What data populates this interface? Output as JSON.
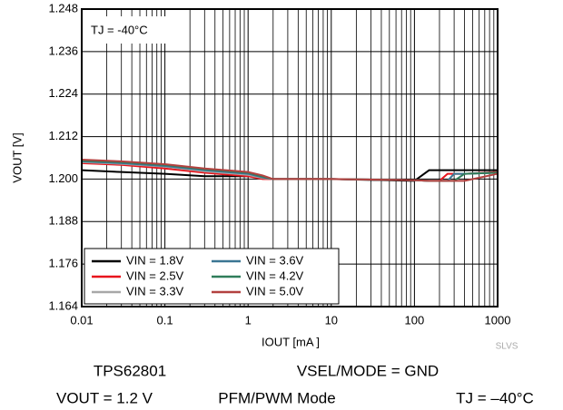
{
  "chart_data": {
    "type": "line",
    "xscale": "log",
    "ylabel": "VOUT [V]",
    "xlabel": "IOUT [mA ]",
    "annotation": "TJ = -40°C",
    "watermark": "SLVS",
    "footer": [
      "TPS62801",
      "VSEL/MODE = GND",
      "VOUT = 1.2 V",
      "PFM/PWM Mode",
      "TJ = –40°C"
    ],
    "x": [
      0.01,
      0.03,
      0.1,
      0.3,
      1,
      1.5,
      2,
      10,
      100,
      150,
      200,
      250,
      300,
      400,
      1000
    ],
    "series": [
      {
        "name": "VIN = 1.8V",
        "color": "#000000",
        "values": [
          1.2025,
          1.202,
          1.2015,
          1.2008,
          1.2008,
          1.2003,
          1.2,
          1.2,
          1.1995,
          1.2025,
          1.2025,
          1.2025,
          1.2025,
          1.2025,
          1.2025
        ]
      },
      {
        "name": "VIN = 2.5V",
        "color": "#e8141c",
        "values": [
          1.2045,
          1.204,
          1.203,
          1.2018,
          1.2008,
          1.2,
          1.2,
          1.2,
          1.1997,
          1.1995,
          1.1995,
          1.2015,
          1.2015,
          1.2015,
          1.202
        ]
      },
      {
        "name": "VIN = 3.3V",
        "color": "#a8a8a8",
        "values": [
          1.2048,
          1.2043,
          1.2035,
          1.2022,
          1.2012,
          1.2003,
          1.2,
          1.2,
          1.1997,
          1.1995,
          1.1995,
          1.1995,
          1.2015,
          1.2015,
          1.2018
        ]
      },
      {
        "name": "VIN = 3.6V",
        "color": "#3b7693",
        "values": [
          1.205,
          1.2045,
          1.2037,
          1.2025,
          1.2015,
          1.2005,
          1.2,
          1.2,
          1.1997,
          1.1995,
          1.1995,
          1.1995,
          1.2015,
          1.2015,
          1.2018
        ]
      },
      {
        "name": "VIN = 4.2V",
        "color": "#2f7d5a",
        "values": [
          1.2052,
          1.2048,
          1.204,
          1.2028,
          1.2018,
          1.2007,
          1.2,
          1.2,
          1.1997,
          1.1995,
          1.1995,
          1.1995,
          1.1995,
          1.2015,
          1.2018
        ]
      },
      {
        "name": "VIN = 5.0V",
        "color": "#b3413f",
        "values": [
          1.2055,
          1.205,
          1.2042,
          1.203,
          1.202,
          1.201,
          1.2,
          1.2,
          1.1997,
          1.1995,
          1.1995,
          1.1995,
          1.1995,
          1.1995,
          1.2015
        ]
      }
    ],
    "xlim": [
      0.01,
      1000
    ],
    "xticks": [
      0.01,
      0.1,
      1,
      10,
      100,
      1000
    ],
    "xminorticks": [
      0.02,
      0.03,
      0.04,
      0.05,
      0.06,
      0.07,
      0.08,
      0.09,
      0.2,
      0.3,
      0.4,
      0.5,
      0.6,
      0.7,
      0.8,
      0.9,
      2,
      3,
      4,
      5,
      6,
      7,
      8,
      9,
      20,
      30,
      40,
      50,
      60,
      70,
      80,
      90,
      200,
      300,
      400,
      500,
      600,
      700,
      800,
      900
    ],
    "ylim": [
      1.164,
      1.248
    ],
    "yticks": [
      1.164,
      1.176,
      1.188,
      {
        "value": 1.2,
        "label": "1.200"
      },
      1.212,
      1.224,
      1.236,
      1.248
    ],
    "grid": true,
    "legend": "lower left"
  }
}
